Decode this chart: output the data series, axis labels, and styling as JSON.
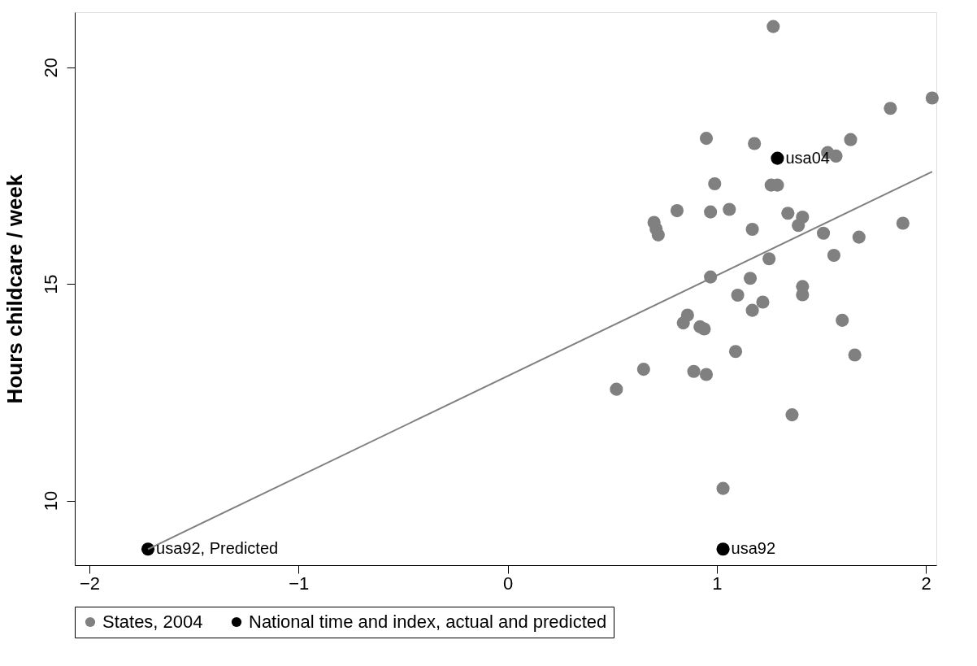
{
  "chart_data": {
    "type": "scatter",
    "ylabel": "Hours childcare / week",
    "xlim": [
      -2.07,
      2.05
    ],
    "xticks": [
      -2,
      -1,
      0,
      1,
      2
    ],
    "ylim": [
      8.51,
      21.27
    ],
    "yticks": [
      10,
      15,
      20
    ],
    "grid": false,
    "legend": "bottom",
    "marker": "circle",
    "series": [
      {
        "name": "States, 2004",
        "color": "#808080",
        "x": [
          1.27,
          2.03,
          1.83,
          0.95,
          1.18,
          1.64,
          1.53,
          1.57,
          0.99,
          1.26,
          1.29,
          0.81,
          0.97,
          1.06,
          0.7,
          0.71,
          0.72,
          1.34,
          1.41,
          1.39,
          1.17,
          1.89,
          1.51,
          1.68,
          1.25,
          1.56,
          0.97,
          1.16,
          1.41,
          1.41,
          1.1,
          1.22,
          1.17,
          0.86,
          0.84,
          0.92,
          0.94,
          1.6,
          1.66,
          1.09,
          0.65,
          0.89,
          0.95,
          0.52,
          1.36,
          1.03
        ],
        "values": [
          20.94,
          19.29,
          19.05,
          18.36,
          18.24,
          18.33,
          18.03,
          17.95,
          17.31,
          17.28,
          17.28,
          16.69,
          16.66,
          16.72,
          16.42,
          16.27,
          16.13,
          16.63,
          16.54,
          16.35,
          16.26,
          16.4,
          16.17,
          16.08,
          15.58,
          15.66,
          15.16,
          15.13,
          14.94,
          14.75,
          14.74,
          14.58,
          14.39,
          14.28,
          14.1,
          14.01,
          13.96,
          14.16,
          13.36,
          13.44,
          13.03,
          12.98,
          12.91,
          12.57,
          11.98,
          10.28
        ]
      },
      {
        "name": "National time and index, actual and predicted",
        "color": "#000000",
        "x": [
          1.29,
          1.03,
          -1.72
        ],
        "values": [
          17.9,
          8.88,
          8.88
        ]
      },
      {
        "type": "line",
        "marker": "none",
        "color": "#808080",
        "x": [
          -1.72,
          2.03
        ],
        "values": [
          8.88,
          17.59
        ]
      }
    ],
    "annotations": [
      {
        "text": "usa04",
        "x": 1.29,
        "y": 17.9
      },
      {
        "text": "usa92",
        "x": 1.03,
        "y": 8.88
      },
      {
        "text": "usa92, Predicted",
        "x": -1.72,
        "y": 8.88
      }
    ]
  }
}
